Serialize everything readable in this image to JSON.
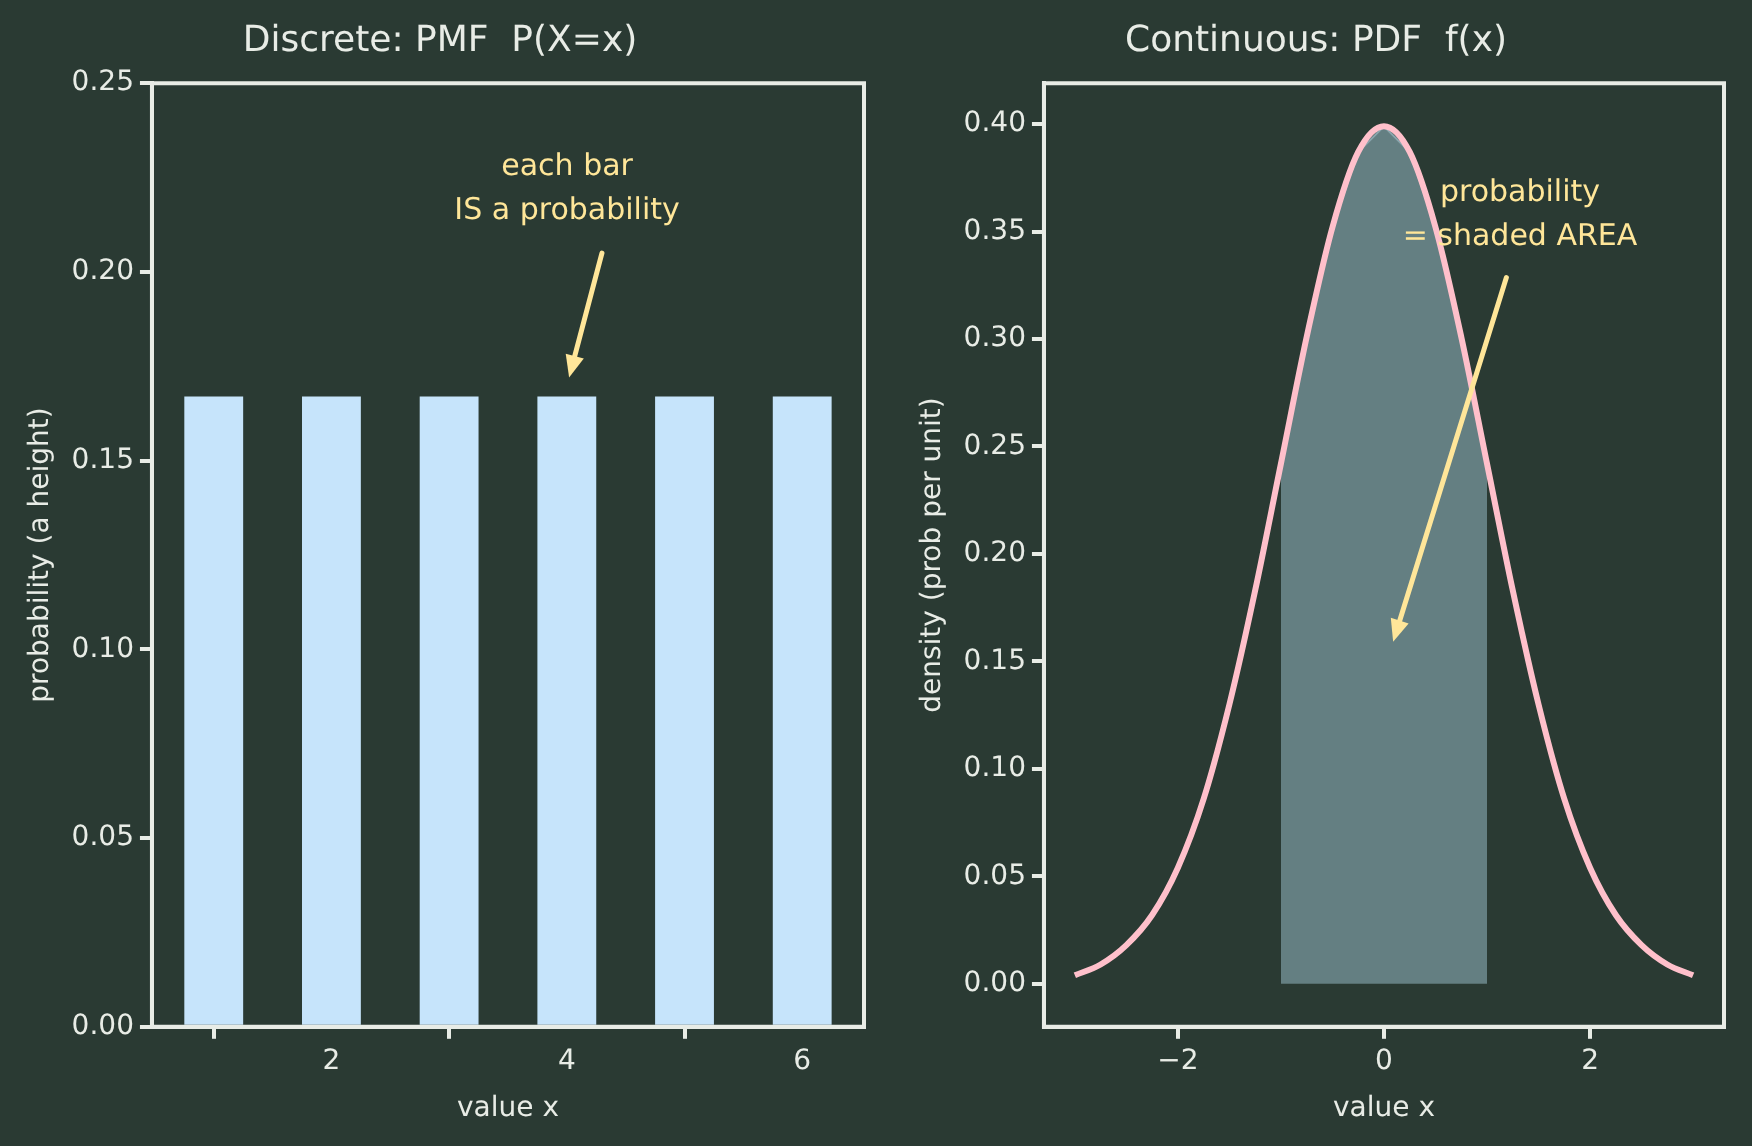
{
  "chart_data": [
    {
      "type": "bar",
      "title": "Discrete: PMF  P(X=x)",
      "xlabel": "value x",
      "ylabel": "probability (a height)",
      "x": [
        1,
        2,
        3,
        4,
        5,
        6
      ],
      "values": [
        0.167,
        0.167,
        0.167,
        0.167,
        0.167,
        0.167
      ],
      "color": "#c6e4fb",
      "xlim": [
        0.475,
        6.525
      ],
      "xticks": [
        2,
        4,
        6
      ],
      "ylim": [
        0,
        0.25
      ],
      "yticks": [
        {
          "value": 0,
          "label": "0.00"
        },
        0.05,
        {
          "value": 0.1,
          "label": "0.10"
        },
        0.15,
        {
          "value": 0.2,
          "label": "0.20"
        },
        0.25
      ],
      "annotations": [
        "each bar\nIS a probability"
      ]
    },
    {
      "type": "line",
      "title": "Continuous: PDF  f(x)",
      "xlabel": "value x",
      "ylabel": "density (prob per unit)",
      "series": [
        {
          "type": "area",
          "color": "#647f82",
          "x": [
            -1,
            -0.75,
            -0.5,
            -0.25,
            0,
            0.25,
            0.5,
            0.75,
            1
          ],
          "values": [
            0.242,
            0.301,
            0.352,
            0.387,
            0.399,
            0.387,
            0.352,
            0.301,
            0.242
          ]
        },
        {
          "type": "line",
          "color": "#ffc0cb",
          "x": [
            -3,
            -2.75,
            -2.5,
            -2.25,
            -2,
            -1.75,
            -1.5,
            -1.25,
            -1,
            -0.75,
            -0.5,
            -0.25,
            0,
            0.25,
            0.5,
            0.75,
            1,
            1.25,
            1.5,
            1.75,
            2,
            2.25,
            2.5,
            2.75,
            3
          ],
          "values": [
            0.004,
            0.009,
            0.018,
            0.032,
            0.054,
            0.086,
            0.13,
            0.183,
            0.242,
            0.301,
            0.352,
            0.387,
            0.399,
            0.387,
            0.352,
            0.301,
            0.242,
            0.183,
            0.13,
            0.086,
            0.054,
            0.032,
            0.018,
            0.009,
            0.004
          ]
        }
      ],
      "xlim": [
        -3.3,
        3.3
      ],
      "xticks": [
        {
          "value": -2,
          "label": "−2"
        },
        0,
        2
      ],
      "ylim": [
        -0.02,
        0.419
      ],
      "yticks": [
        {
          "value": 0,
          "label": "0.00"
        },
        0.05,
        {
          "value": 0.1,
          "label": "0.10"
        },
        0.15,
        {
          "value": 0.2,
          "label": "0.20"
        },
        0.25,
        {
          "value": 0.3,
          "label": "0.30"
        },
        0.35,
        {
          "value": 0.4,
          "label": "0.40"
        }
      ],
      "annotations": [
        "probability\n= shaded AREA"
      ]
    }
  ]
}
